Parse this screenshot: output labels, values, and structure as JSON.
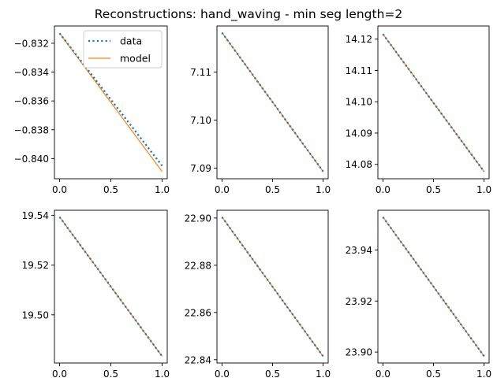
{
  "title": "Reconstructions: hand_waving - min seg length=2",
  "colors": {
    "data": "#1f77b4",
    "model": "#ff7f0e",
    "axis": "#000000"
  },
  "legend": {
    "location": "upper-right",
    "subplot": 0
  },
  "chart_data": [
    {
      "type": "line",
      "x_ticks": [
        0.0,
        0.5,
        1.0
      ],
      "x_tick_labels": [
        "0.0",
        "0.5",
        "1.0"
      ],
      "xlim": [
        -0.05,
        1.05
      ],
      "ylim": [
        -0.8414,
        -0.8308
      ],
      "y_ticks": [
        -0.832,
        -0.834,
        -0.836,
        -0.838,
        -0.84
      ],
      "y_tick_labels": [
        "−0.832",
        "−0.834",
        "−0.836",
        "−0.838",
        "−0.840"
      ],
      "series": [
        {
          "name": "data",
          "style": "dotted",
          "x": [
            0,
            1
          ],
          "y": [
            -0.8313,
            -0.8405
          ]
        },
        {
          "name": "model",
          "style": "solid",
          "x": [
            0,
            1
          ],
          "y": [
            -0.8313,
            -0.8409
          ]
        }
      ]
    },
    {
      "type": "line",
      "x_ticks": [
        0.0,
        0.5,
        1.0
      ],
      "x_tick_labels": [
        "0.0",
        "0.5",
        "1.0"
      ],
      "xlim": [
        -0.05,
        1.05
      ],
      "ylim": [
        7.0878,
        7.1196
      ],
      "y_ticks": [
        7.11,
        7.1,
        7.09
      ],
      "y_tick_labels": [
        "7.11",
        "7.10",
        "7.09"
      ],
      "series": [
        {
          "name": "data",
          "style": "dotted",
          "x": [
            0,
            1
          ],
          "y": [
            7.1182,
            7.0893
          ]
        },
        {
          "name": "model",
          "style": "solid",
          "x": [
            0,
            1
          ],
          "y": [
            7.1182,
            7.0893
          ]
        }
      ]
    },
    {
      "type": "line",
      "x_ticks": [
        0.0,
        0.5,
        1.0
      ],
      "x_tick_labels": [
        "0.0",
        "0.5",
        "1.0"
      ],
      "xlim": [
        -0.05,
        1.05
      ],
      "ylim": [
        14.0754,
        14.1242
      ],
      "y_ticks": [
        14.12,
        14.11,
        14.1,
        14.09,
        14.08
      ],
      "y_tick_labels": [
        "14.12",
        "14.11",
        "14.10",
        "14.09",
        "14.08"
      ],
      "series": [
        {
          "name": "data",
          "style": "dotted",
          "x": [
            0,
            1
          ],
          "y": [
            14.1216,
            14.0777
          ]
        },
        {
          "name": "model",
          "style": "solid",
          "x": [
            0,
            1
          ],
          "y": [
            14.1216,
            14.0777
          ]
        }
      ]
    },
    {
      "type": "line",
      "x_ticks": [
        0.0,
        0.5,
        1.0
      ],
      "x_tick_labels": [
        "0.0",
        "0.5",
        "1.0"
      ],
      "xlim": [
        -0.05,
        1.05
      ],
      "ylim": [
        19.4806,
        19.5421
      ],
      "y_ticks": [
        19.54,
        19.52,
        19.5
      ],
      "y_tick_labels": [
        "19.54",
        "19.52",
        "19.50"
      ],
      "series": [
        {
          "name": "data",
          "style": "dotted",
          "x": [
            0,
            1
          ],
          "y": [
            19.5394,
            19.4833
          ]
        },
        {
          "name": "model",
          "style": "solid",
          "x": [
            0,
            1
          ],
          "y": [
            19.5394,
            19.4833
          ]
        }
      ]
    },
    {
      "type": "line",
      "x_ticks": [
        0.0,
        0.5,
        1.0
      ],
      "x_tick_labels": [
        "0.0",
        "0.5",
        "1.0"
      ],
      "xlim": [
        -0.05,
        1.05
      ],
      "ylim": [
        22.8386,
        22.9033
      ],
      "y_ticks": [
        22.9,
        22.88,
        22.86,
        22.84
      ],
      "y_tick_labels": [
        "22.90",
        "22.88",
        "22.86",
        "22.84"
      ],
      "series": [
        {
          "name": "data",
          "style": "dotted",
          "x": [
            0,
            1
          ],
          "y": [
            22.9004,
            22.8414
          ]
        },
        {
          "name": "model",
          "style": "solid",
          "x": [
            0,
            1
          ],
          "y": [
            22.9004,
            22.8414
          ]
        }
      ]
    },
    {
      "type": "line",
      "x_ticks": [
        0.0,
        0.5,
        1.0
      ],
      "x_tick_labels": [
        "0.0",
        "0.5",
        "1.0"
      ],
      "xlim": [
        -0.05,
        1.05
      ],
      "ylim": [
        23.8957,
        23.9556
      ],
      "y_ticks": [
        23.94,
        23.92,
        23.9
      ],
      "y_tick_labels": [
        "23.94",
        "23.92",
        "23.90"
      ],
      "series": [
        {
          "name": "data",
          "style": "dotted",
          "x": [
            0,
            1
          ],
          "y": [
            23.9529,
            23.8984
          ]
        },
        {
          "name": "model",
          "style": "solid",
          "x": [
            0,
            1
          ],
          "y": [
            23.9529,
            23.8984
          ]
        }
      ]
    }
  ]
}
